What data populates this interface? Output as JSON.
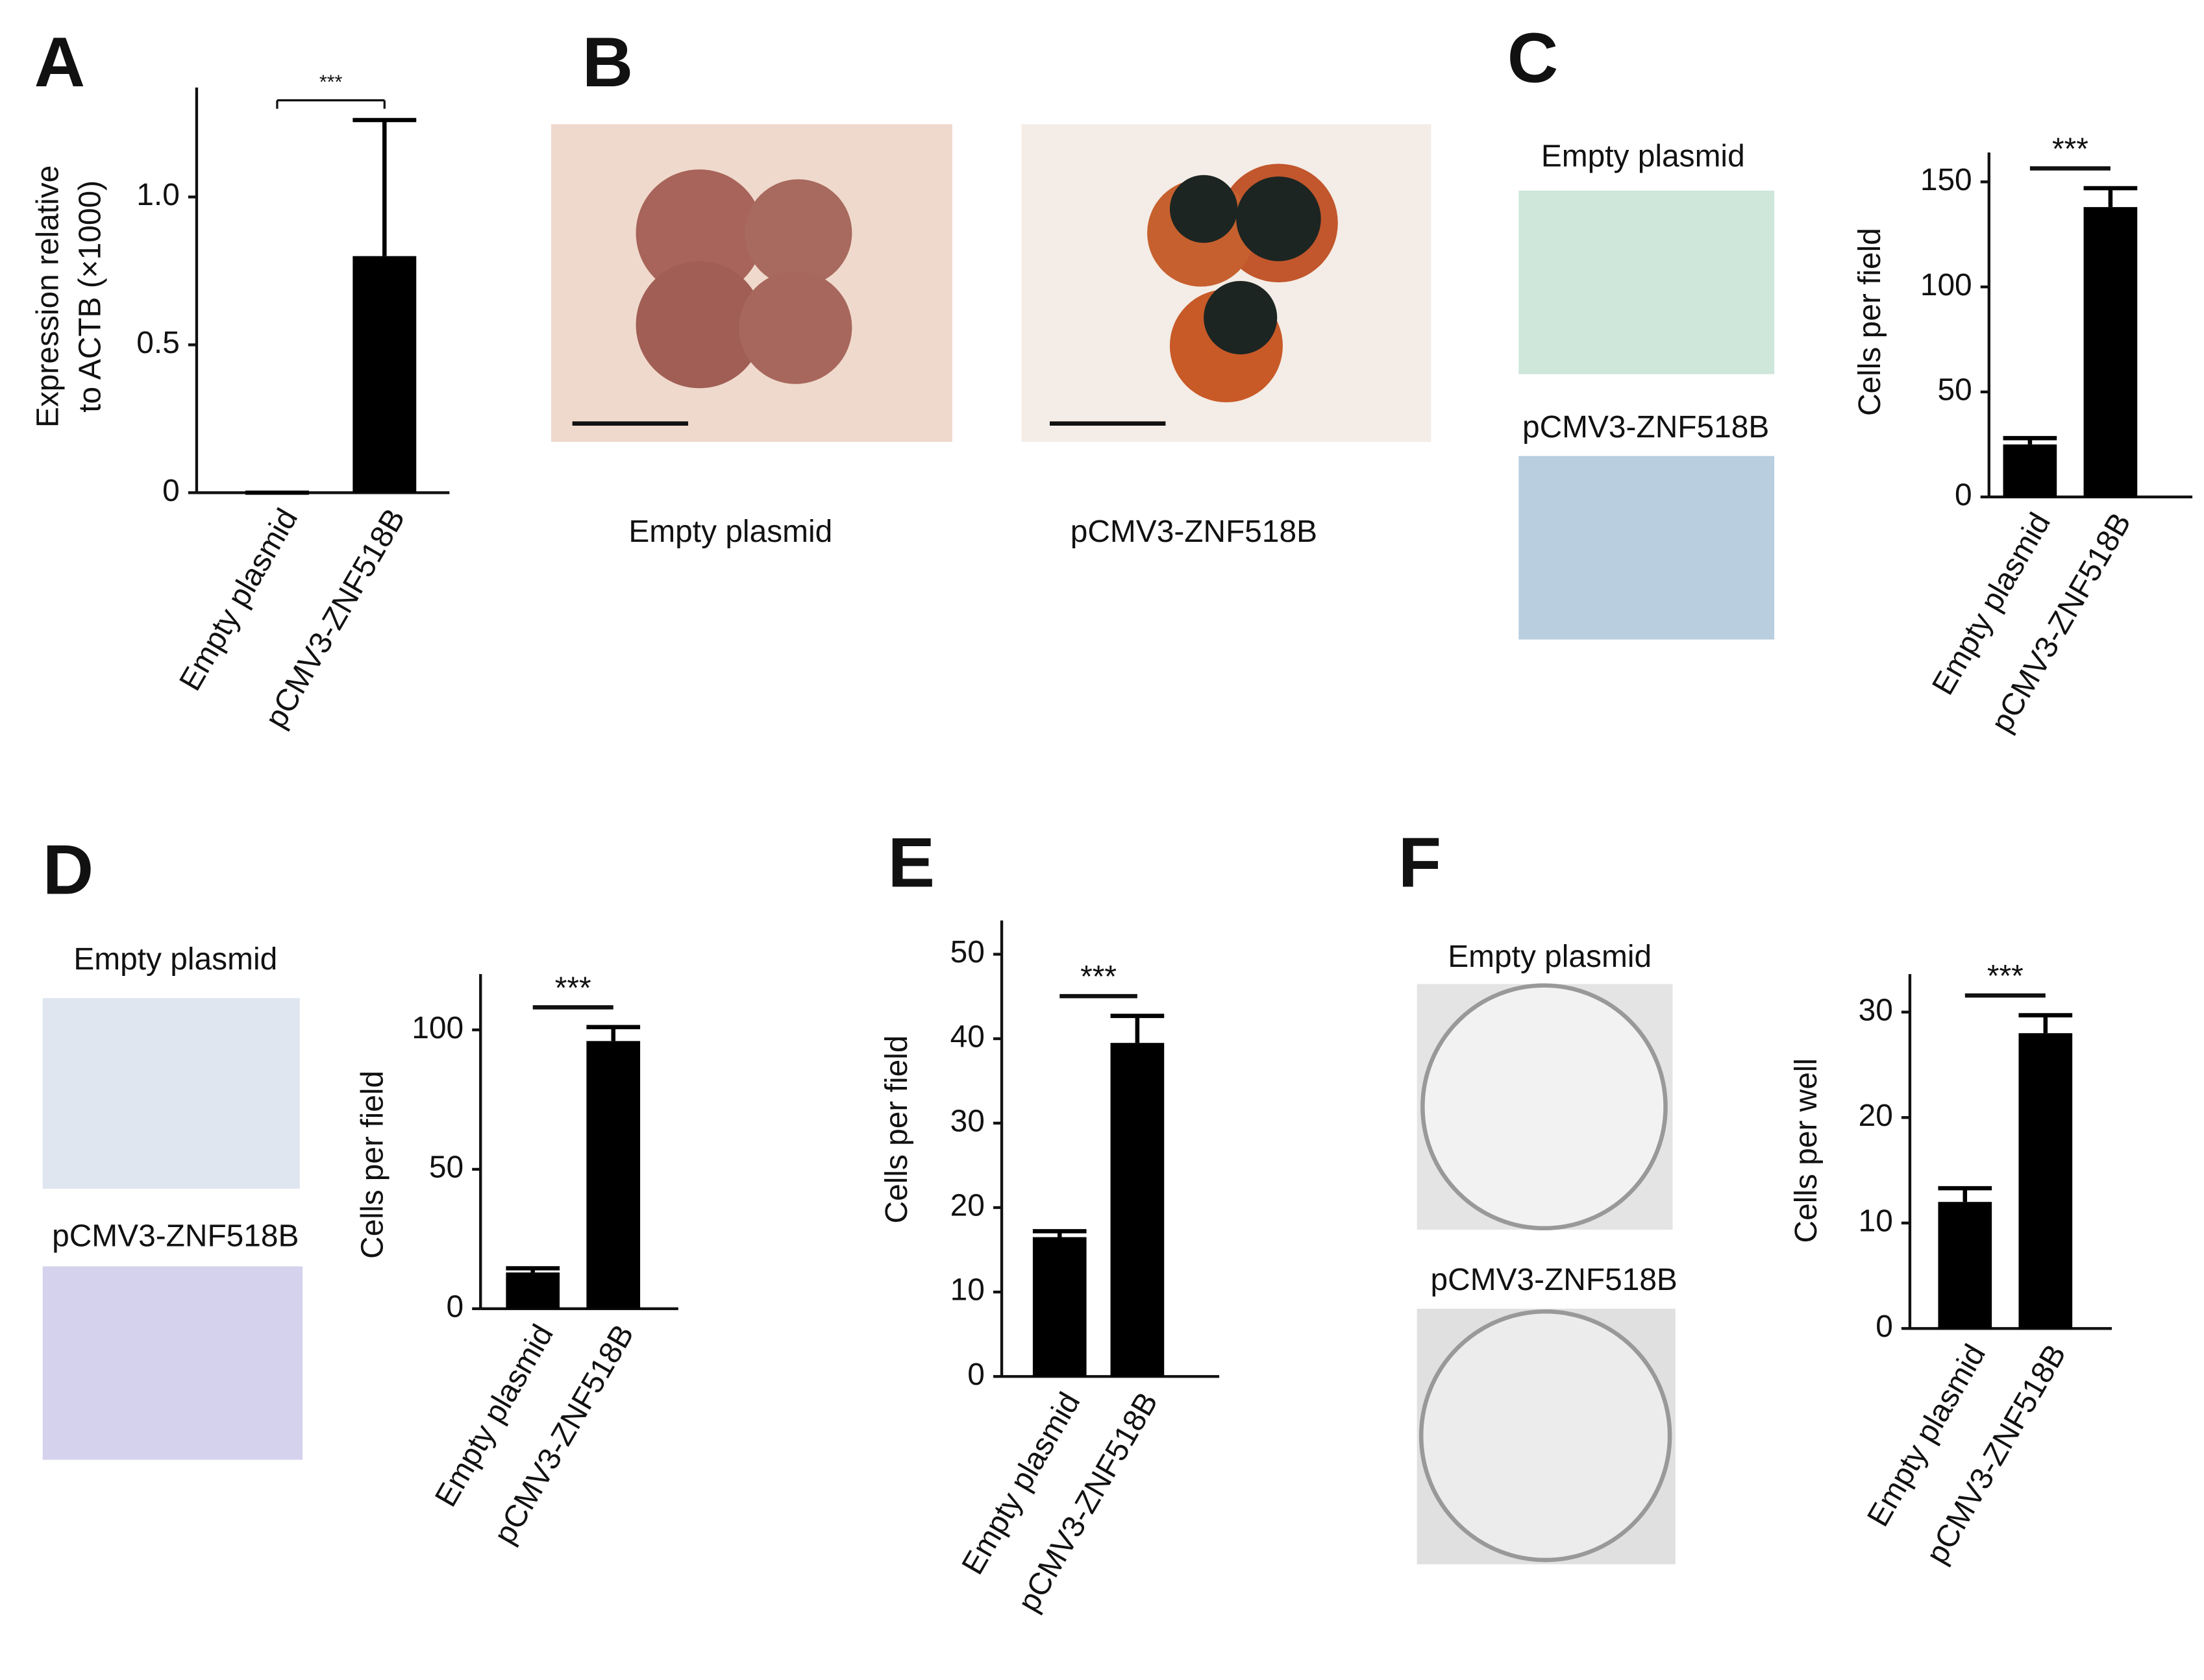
{
  "chart_data": [
    {
      "type": "bar",
      "panel": "A",
      "categories": [
        "Empty plasmid",
        "pCMV3-ZNF518B"
      ],
      "values": [
        0,
        0.8
      ],
      "errors": [
        0,
        0.46
      ],
      "color": "#000000",
      "ylim": [
        0,
        1.37
      ],
      "yticks": [
        0,
        0.5,
        {
          "value": 1,
          "label": "1.0"
        }
      ],
      "ylabel": [
        "Expression relative",
        "to ACTB (×1000)"
      ],
      "annotation": "***"
    },
    {
      "type": "bar",
      "panel": "C",
      "categories": [
        "Empty plasmid",
        "pCMV3-ZNF518B"
      ],
      "values": [
        25,
        138
      ],
      "errors": [
        3,
        9
      ],
      "color": "#000000",
      "ylim": [
        0,
        164
      ],
      "yticks": [
        0,
        50,
        100,
        150
      ],
      "ylabel": [
        "Cells per field"
      ],
      "annotation": "***",
      "image_captions": [
        "Empty plasmid",
        "pCMV3-ZNF518B"
      ]
    },
    {
      "type": "bar",
      "panel": "D",
      "categories": [
        "Empty plasmid",
        "pCMV3-ZNF518B"
      ],
      "values": [
        13,
        96
      ],
      "errors": [
        1.5,
        5
      ],
      "color": "#000000",
      "ylim": [
        0,
        120
      ],
      "yticks": [
        0,
        50,
        100
      ],
      "ylabel": [
        "Cells per field"
      ],
      "annotation": "***",
      "image_captions": [
        "Empty plasmid",
        "pCMV3-ZNF518B"
      ]
    },
    {
      "type": "bar",
      "panel": "E",
      "categories": [
        "Empty plasmid",
        "pCMV3-ZNF518B"
      ],
      "values": [
        16.5,
        39.5
      ],
      "errors": [
        0.7,
        3.2
      ],
      "color": "#000000",
      "ylim": [
        0,
        54
      ],
      "yticks": [
        0,
        10,
        20,
        30,
        40,
        50
      ],
      "ylabel": [
        "Cells per field"
      ],
      "annotation": "***"
    },
    {
      "type": "bar",
      "panel": "F",
      "categories": [
        "Empty plasmid",
        "pCMV3-ZNF518B"
      ],
      "values": [
        12,
        28
      ],
      "errors": [
        1.3,
        1.7
      ],
      "color": "#000000",
      "ylim": [
        0,
        33.6
      ],
      "yticks": [
        0,
        10,
        20,
        30
      ],
      "ylabel": [
        "Cells per well"
      ],
      "annotation": "***",
      "image_captions": [
        "Empty plasmid",
        "pCMV3-ZNF518B"
      ]
    }
  ],
  "figure_b": {
    "panel": "B",
    "image_captions": [
      "Empty plasmid",
      "pCMV3-ZNF518B"
    ]
  }
}
